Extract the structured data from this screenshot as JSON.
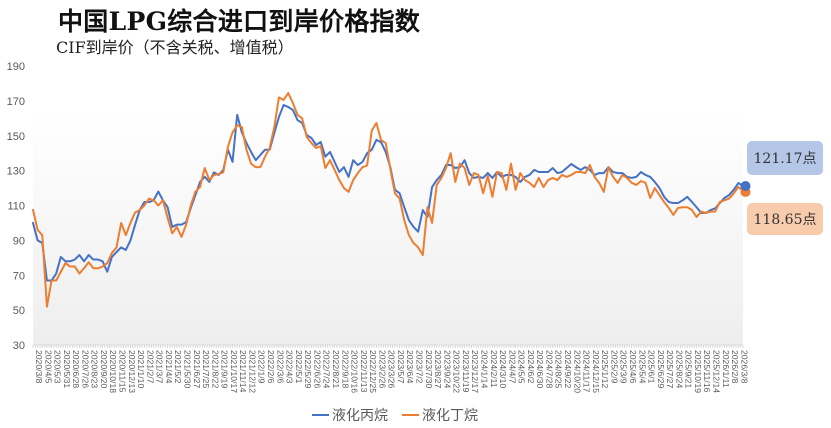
{
  "title": "中国LPG综合进口到岸价格指数",
  "subtitle": "CIF到岸价（不含关税、增值税）",
  "callouts": {
    "propane": {
      "text": "121.17点",
      "value": 121.17,
      "bg": "#b4c7e7"
    },
    "butane": {
      "text": "118.65点",
      "value": 118.65,
      "bg": "#f8cbad"
    }
  },
  "legend": {
    "items": [
      {
        "label": "液化丙烷",
        "color": "#4472C4"
      },
      {
        "label": "液化丁烷",
        "color": "#ED7D31"
      }
    ]
  },
  "chart_data": {
    "type": "line",
    "title": "中国LPG综合进口到岸价格指数",
    "subtitle": "CIF到岸价（不含关税、增值税）",
    "xlabel": "",
    "ylabel": "",
    "ylim": [
      30,
      190
    ],
    "y_ticks": [
      190,
      170,
      150,
      130,
      110,
      90,
      70,
      50,
      30
    ],
    "grid": false,
    "legend_position": "bottom",
    "points_per_tick": 2,
    "x_tick_labels": [
      "2020/3/8",
      "2020/4/5",
      "2020/5/3",
      "2020/5/31",
      "2020/6/28",
      "2020/7/26",
      "2020/8/23",
      "2020/9/20",
      "2020/10/18",
      "2020/11/15",
      "2020/12/13",
      "2021/1/10",
      "2021/2/7",
      "2021/3/7",
      "2021/4/4",
      "2021/5/2",
      "2021/5/30",
      "2021/6/27",
      "2021/7/25",
      "2021/8/22",
      "2021/9/19",
      "2021/10/17",
      "2021/11/14",
      "2021/12/12",
      "2022/1/9",
      "2022/2/6",
      "2022/3/6",
      "2022/4/3",
      "2022/5/1",
      "2022/5/29",
      "2022/6/26",
      "2022/7/24",
      "2022/8/21",
      "2022/9/18",
      "2022/10/16",
      "2022/11/13",
      "2022/12/25",
      "2023/2/26",
      "2023/3/26",
      "2023/5/7",
      "2023/6/4",
      "2023/7/2",
      "2023/7/30",
      "2023/8/27",
      "2023/9/24",
      "2023/10/22",
      "2023/11/19",
      "2023/12/17",
      "2024/1/14",
      "2024/2/11",
      "2024/3/10",
      "2024/4/7",
      "2024/5/5",
      "2024/6/2",
      "2024/6/30",
      "2024/7/28",
      "2024/8/25",
      "2024/9/22",
      "2024/10/20",
      "2024/11/17",
      "2024/12/15",
      "2025/1/12",
      "2025/2/9",
      "2025/3/9",
      "2025/4/6",
      "2025/5/4",
      "2025/6/1",
      "2025/6/29",
      "2025/7/27",
      "2025/8/24",
      "2025/9/21",
      "2025/10/19",
      "2025/11/16",
      "2025/12/14",
      "2026/1/11",
      "2026/2/8",
      "2026/3/8"
    ],
    "series": [
      {
        "name": "液化丙烷",
        "color": "#4472C4",
        "values": [
          100,
          90,
          88.5,
          67,
          67,
          71,
          80.5,
          78,
          78,
          79,
          81.6,
          78,
          81.6,
          79,
          79,
          78,
          72,
          80.5,
          83.3,
          86,
          84.5,
          90,
          99,
          107.4,
          112,
          112,
          113,
          118,
          113,
          109,
          97.7,
          99,
          99,
          100.5,
          108.6,
          116,
          123.5,
          126.5,
          123.5,
          129,
          127.5,
          130.4,
          142,
          135,
          162,
          152,
          145.8,
          140.7,
          136,
          139,
          142,
          142,
          151.6,
          160.8,
          167.6,
          166.5,
          164.8,
          159,
          157.3,
          150.4,
          148.7,
          144.7,
          146.4,
          138,
          140.7,
          135,
          129.2,
          132,
          126.4,
          136,
          133.2,
          135,
          140,
          142,
          147.6,
          146.4,
          140.7,
          132,
          119,
          117,
          109,
          101.6,
          97.7,
          95,
          107.4,
          103.4,
          120.6,
          124.6,
          127.5,
          133.2,
          133.2,
          131.5,
          132,
          136,
          128.6,
          125.8,
          126.4,
          125.8,
          128.6,
          125.8,
          129.2,
          126.4,
          127.5,
          127.5,
          126.4,
          123.5,
          126.4,
          127.5,
          130.4,
          129.2,
          129.2,
          129.2,
          131.5,
          128.6,
          129.2,
          131.5,
          133.8,
          132,
          130.4,
          132,
          130.4,
          127.5,
          128.6,
          128.6,
          132,
          129.2,
          128.6,
          128.6,
          126.4,
          125.8,
          126.4,
          129.2,
          127.5,
          126.4,
          123.5,
          120,
          115,
          112,
          111.4,
          111.4,
          113,
          115,
          112,
          109,
          105.7,
          105.7,
          107.4,
          108.3,
          111.4,
          114.3,
          116,
          119,
          122.9,
          121.17
        ]
      },
      {
        "name": "液化丁烷",
        "color": "#ED7D31",
        "values": [
          107.5,
          96,
          93,
          52,
          67,
          67,
          72,
          77,
          75,
          75,
          71,
          74,
          77.5,
          74,
          74,
          75,
          77,
          82.8,
          86,
          100,
          93,
          100,
          106,
          107.4,
          110,
          114,
          113,
          110,
          113,
          103,
          94,
          97.7,
          92,
          99,
          110,
          118,
          120.6,
          131.5,
          124.6,
          127.5,
          128,
          129,
          143.6,
          152,
          156,
          155,
          142,
          134,
          132,
          132,
          138,
          143,
          155,
          172,
          170.5,
          174.5,
          168.8,
          162,
          160,
          149.3,
          145.8,
          143,
          144,
          131.5,
          136,
          130.4,
          124.6,
          120,
          117.8,
          124.6,
          128.6,
          132,
          133,
          153,
          157.3,
          147.6,
          145.8,
          131,
          117,
          114,
          101.6,
          93,
          88.5,
          86,
          81.6,
          109,
          100,
          121.8,
          125.8,
          131.5,
          140,
          123.5,
          134,
          131.5,
          121.8,
          128.6,
          127.5,
          117,
          127,
          115,
          129.2,
          128.6,
          119,
          134,
          119,
          128.6,
          124.6,
          123,
          120.6,
          125.8,
          120.6,
          124.6,
          125.8,
          124.6,
          127.5,
          126.4,
          127.5,
          129.2,
          129.2,
          128.6,
          133.2,
          126.4,
          123,
          117.8,
          132,
          126.4,
          123,
          127.5,
          125.8,
          123,
          121.8,
          124,
          123,
          114.3,
          120,
          116,
          112,
          108.6,
          104.6,
          108.6,
          109,
          109,
          107.4,
          103.4,
          106.5,
          105.7,
          106.5,
          106.5,
          112,
          113,
          114,
          117,
          120.6,
          118.65
        ]
      }
    ],
    "annotations": [
      {
        "series": "液化丙烷",
        "text": "121.17点",
        "value": 121.17,
        "position": "last-point"
      },
      {
        "series": "液化丁烷",
        "text": "118.65点",
        "value": 118.65,
        "position": "last-point"
      }
    ]
  }
}
